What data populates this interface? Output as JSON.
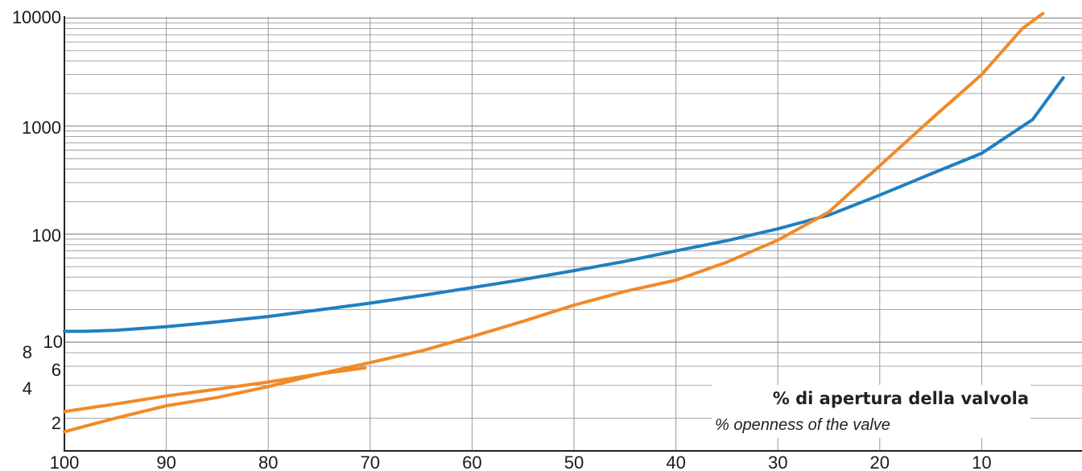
{
  "chart_data": {
    "type": "line",
    "x_axis": {
      "ticks": [
        100,
        90,
        80,
        70,
        60,
        50,
        40,
        30,
        20,
        10
      ],
      "tick_labels": [
        "100",
        "90",
        "80",
        "70",
        "60",
        "50",
        "40",
        "30",
        "20",
        "10"
      ],
      "range": [
        100,
        0
      ],
      "reversed": true
    },
    "y_axis": {
      "scale": "log",
      "range": [
        1,
        10000
      ],
      "tick_labels": [
        "10000",
        "1000",
        "100",
        "10",
        "8",
        "6",
        "4",
        "2"
      ]
    },
    "grid": true,
    "caption": {
      "main": "% di apertura della valvola",
      "sub": "% openness of the valve"
    },
    "colors": {
      "blue": "#1f7fc0",
      "orange": "#f08a28",
      "grid": "#9a9a9a",
      "axis": "#222222"
    },
    "series": [
      {
        "color": "#1f7fc0",
        "x": [
          100,
          98,
          95,
          90,
          85,
          80,
          75,
          70,
          65,
          60,
          55,
          50,
          45,
          40,
          35,
          30,
          25,
          20,
          15,
          10,
          5,
          2
        ],
        "y": [
          12.6,
          12.6,
          12.9,
          13.9,
          15.4,
          17.3,
          19.9,
          23,
          27,
          32,
          38,
          46,
          56,
          70,
          87,
          112,
          150,
          230,
          360,
          560,
          1150,
          2800
        ]
      },
      {
        "color": "#f08a28",
        "x": [
          100,
          95,
          90,
          85,
          80,
          75,
          70,
          65,
          60,
          55,
          50,
          45,
          40,
          35,
          30,
          25,
          20,
          15,
          10,
          6,
          4
        ],
        "y": [
          1.5,
          2.0,
          2.6,
          3.1,
          3.9,
          5.1,
          6.5,
          8.3,
          11.3,
          15.6,
          22,
          29.5,
          37.5,
          55,
          88,
          160,
          430,
          1150,
          3000,
          8000,
          11000
        ]
      },
      {
        "color": "#f08a28",
        "x": [
          100,
          95,
          90,
          85,
          80,
          75,
          70.5
        ],
        "y": [
          2.3,
          2.7,
          3.2,
          3.7,
          4.3,
          5.1,
          5.8
        ]
      }
    ]
  }
}
